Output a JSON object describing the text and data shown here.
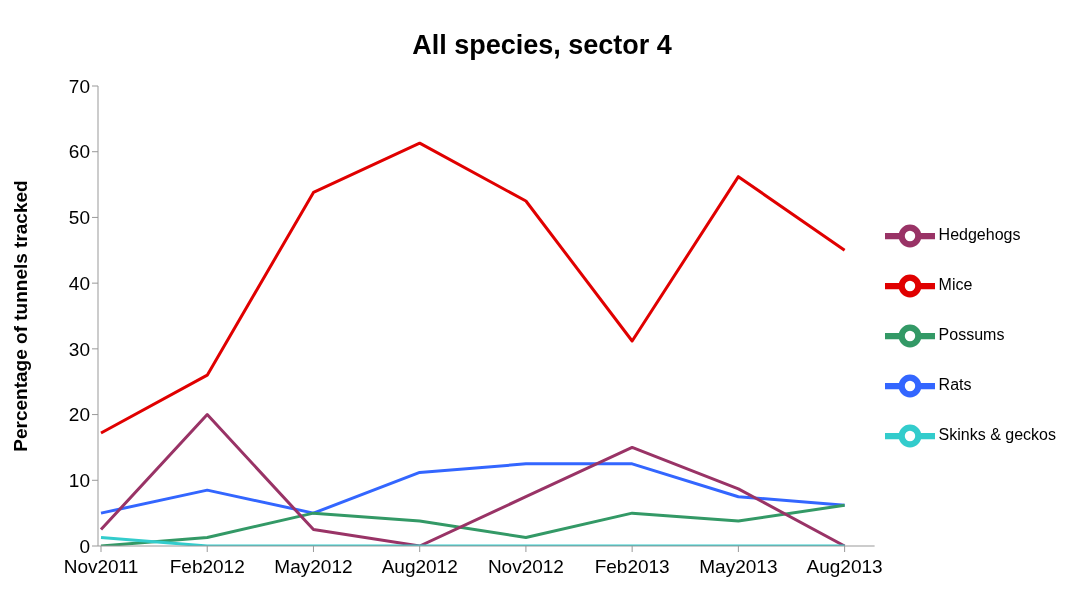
{
  "chart_data": {
    "type": "line",
    "title": "All species, sector 4",
    "ylabel": "Percentage of tunnels tracked",
    "categories": [
      "Nov2011",
      "Feb2012",
      "May2012",
      "Aug2012",
      "Nov2012",
      "Feb2013",
      "May2013",
      "Aug2013"
    ],
    "series": [
      {
        "name": "Rats",
        "color": "#3366ff",
        "values": [
          5,
          8.5,
          5,
          11.2,
          12.5,
          12.5,
          7.5,
          6.2
        ]
      },
      {
        "name": "Mice",
        "color": "#e00000",
        "values": [
          17.2,
          26,
          53.8,
          61.3,
          52.5,
          31.2,
          56.2,
          45
        ]
      },
      {
        "name": "Possums",
        "color": "#339966",
        "values": [
          0,
          1.3,
          5,
          3.8,
          1.3,
          5,
          3.8,
          6.2
        ]
      },
      {
        "name": "Hedgehogs",
        "color": "#993366",
        "values": [
          2.5,
          20,
          2.5,
          0,
          7.5,
          15,
          8.7,
          0
        ]
      },
      {
        "name": "Skinks & geckos",
        "color": "#33cccc",
        "values": [
          1.3,
          0,
          0,
          0,
          0,
          0,
          0,
          0
        ]
      }
    ],
    "ylim": [
      0,
      70
    ],
    "yticks": [
      0,
      10,
      20,
      30,
      40,
      50,
      60,
      70
    ],
    "grid": false,
    "legend": "right",
    "marker": "none",
    "line_style": "solid"
  }
}
